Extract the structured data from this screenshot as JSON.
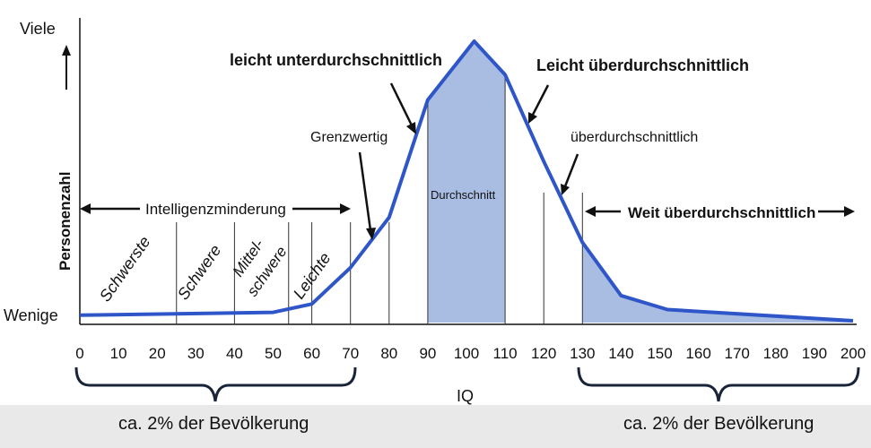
{
  "chart_data": {
    "type": "area",
    "xlabel": "IQ",
    "ylabel": "Personenzahl",
    "y_top_label": "Viele",
    "y_bottom_label": "Wenige",
    "xlim": [
      0,
      200
    ],
    "ylim": [
      0,
      100
    ],
    "x_ticks": [
      "0",
      "10",
      "20",
      "30",
      "40",
      "50",
      "60",
      "70",
      "80",
      "90",
      "100",
      "110",
      "120",
      "130",
      "140",
      "150",
      "160",
      "170",
      "180",
      "190",
      "200"
    ],
    "series": [
      {
        "x": [
          0,
          50,
          60,
          70,
          80,
          90,
          102,
          110,
          120,
          130,
          140,
          152,
          200
        ],
        "y": [
          2,
          3,
          6,
          19,
          37,
          79,
          100,
          88,
          57,
          28,
          9,
          4,
          0
        ]
      }
    ],
    "shaded_ranges": [
      [
        90,
        110
      ],
      [
        130,
        200
      ]
    ],
    "dividers": [
      25,
      40,
      54,
      60,
      70,
      80,
      90,
      110,
      120,
      130
    ],
    "range_labels": {
      "durchschnitt": "Durchschnitt",
      "intelligenzminderung": "Intelligenzminderung",
      "weit_ueber": "Weit überdurchschnittlich",
      "schwerste": "Schwerste",
      "schwere": "Schwere",
      "mittel_1": "Mittel-",
      "mittel_2": "schwere",
      "leichte": "Leichte"
    },
    "annotations": {
      "leicht_unter": "leicht unterdurchschnittlich",
      "leicht_ueber": "Leicht überdurchschnittlich",
      "grenzwertig": "Grenzwertig",
      "ueber": "überdurchschnittlich"
    }
  },
  "footer": {
    "left": "ca. 2% der Bevölkerung",
    "right": "ca. 2% der Bevölkerung"
  },
  "colors": {
    "line": "#2f56c8",
    "fill": "#a9bde3",
    "axis": "#111111"
  }
}
